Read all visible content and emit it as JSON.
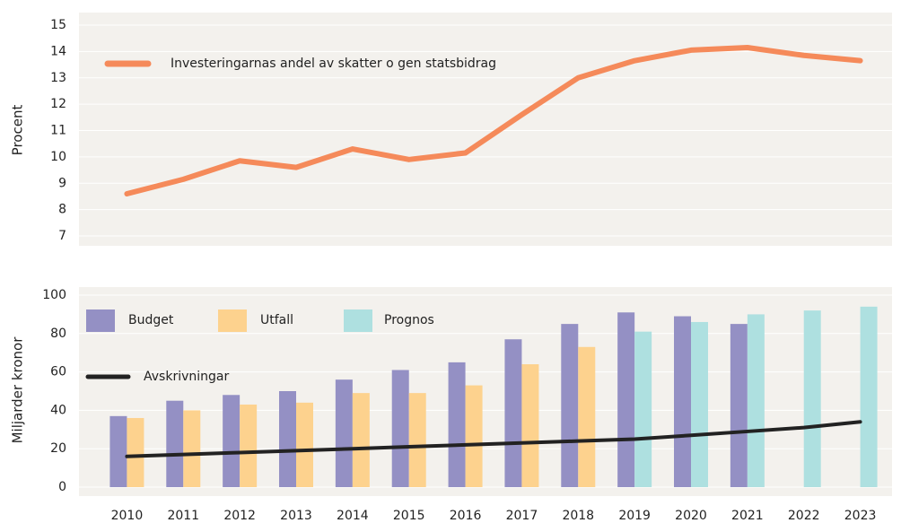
{
  "chart_data": [
    {
      "type": "line",
      "ylabel": "Procent",
      "categories": [
        "2010",
        "2011",
        "2012",
        "2013",
        "2014",
        "2015",
        "2016",
        "2017",
        "2018",
        "2019",
        "2020",
        "2021",
        "2022",
        "2023"
      ],
      "series": [
        {
          "name": "Investeringarnas andel av skatter o gen statsbidrag",
          "color": "#f58a5a",
          "values": [
            8.6,
            9.15,
            9.85,
            9.6,
            10.3,
            9.9,
            10.15,
            11.6,
            13.0,
            13.65,
            14.05,
            14.15,
            13.85,
            13.65
          ]
        }
      ],
      "ylim": [
        7,
        15
      ],
      "yticks": [
        7,
        8,
        9,
        10,
        11,
        12,
        13,
        14,
        15
      ],
      "grid": true
    },
    {
      "type": "bar",
      "ylabel": "Miljarder kronor",
      "categories": [
        "2010",
        "2011",
        "2012",
        "2013",
        "2014",
        "2015",
        "2016",
        "2017",
        "2018",
        "2019",
        "2020",
        "2021",
        "2022",
        "2023"
      ],
      "series": [
        {
          "name": "Budget",
          "color": "#9490c4",
          "values": [
            37,
            45,
            48,
            50,
            56,
            61,
            65,
            77,
            85,
            91,
            89,
            85,
            null,
            null
          ]
        },
        {
          "name": "Utfall",
          "color": "#fdd28e",
          "values": [
            36,
            40,
            43,
            44,
            49,
            49,
            53,
            64,
            73,
            null,
            null,
            null,
            null,
            null
          ]
        },
        {
          "name": "Prognos",
          "color": "#aee0e0",
          "values": [
            null,
            null,
            null,
            null,
            null,
            null,
            null,
            null,
            null,
            81,
            86,
            90,
            92,
            94
          ]
        },
        {
          "name": "Avskrivningar",
          "color": "#222222",
          "type": "line",
          "values": [
            16,
            17,
            18,
            19,
            20,
            21,
            22,
            23,
            24,
            25,
            27,
            29,
            31,
            34
          ]
        }
      ],
      "ylim": [
        0,
        100
      ],
      "yticks": [
        0,
        20,
        40,
        60,
        80,
        100
      ],
      "grid": true
    }
  ]
}
